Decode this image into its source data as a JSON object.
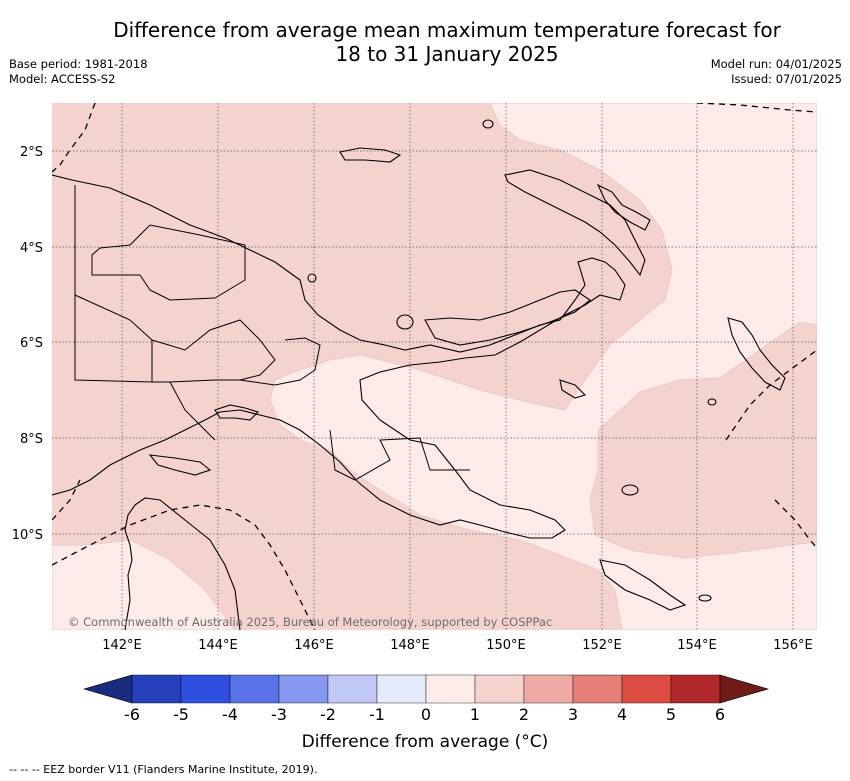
{
  "title": {
    "line1": "Difference from average mean maximum temperature forecast for",
    "line2": "18 to 31 January 2025"
  },
  "meta": {
    "base_period": "Base period: 1981-2018",
    "model": "Model: ACCESS-S2",
    "model_run": "Model run: 04/01/2025",
    "issued": "Issued: 07/01/2025"
  },
  "map": {
    "lon_labels": [
      "142°E",
      "144°E",
      "146°E",
      "148°E",
      "150°E",
      "152°E",
      "154°E",
      "156°E"
    ],
    "lat_labels": [
      "2°S",
      "4°S",
      "6°S",
      "8°S",
      "10°S"
    ],
    "copyright": "© Commonwealth of Australia 2025, Bureau of Meteorology, supported by COSPPac",
    "colors": {
      "band_0_1": "#fcebe8",
      "band_1_2": "#f4d3cf",
      "land_outline": "#000000"
    }
  },
  "colorbar": {
    "label": "Difference from average (°C)",
    "ticks": [
      "-6",
      "-5",
      "-4",
      "-3",
      "-2",
      "-1",
      "0",
      "1",
      "2",
      "3",
      "4",
      "5",
      "6"
    ],
    "colors": [
      "#1a2c7e",
      "#2540b8",
      "#2f4fe0",
      "#5a72e8",
      "#8597ee",
      "#c0c8f5",
      "#e6ebfb",
      "#fcebe8",
      "#f4d3cf",
      "#eeaaa4",
      "#e48078",
      "#dc4c40",
      "#b0282a",
      "#6f1c18"
    ]
  },
  "footnote": "--  --  -- EEZ border V11 (Flanders Marine Institute, 2019)."
}
